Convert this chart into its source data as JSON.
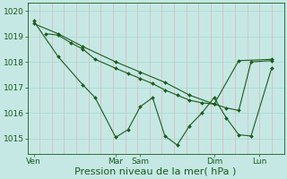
{
  "title": "",
  "xlabel": "Pression niveau de la mer( hPa )",
  "ylabel": "",
  "bg_color": "#c5e8e5",
  "plot_bg_color": "#c5e8e5",
  "line_color": "#1a5c1a",
  "grid_color_v": "#e8b0b0",
  "grid_color_h": "#a8d8d0",
  "ylim": [
    1014.4,
    1020.3
  ],
  "xtick_labels": [
    "Ven",
    "Mar",
    "Sam",
    "Dim",
    "Lun"
  ],
  "xtick_positions": [
    0,
    40,
    52,
    88,
    110
  ],
  "ytick_labels": [
    "1015",
    "1016",
    "1017",
    "1018",
    "1019",
    "1020"
  ],
  "ytick_values": [
    1015,
    1016,
    1017,
    1018,
    1019,
    1020
  ],
  "num_vgrid": 22,
  "num_hgrid": 6,
  "line1_x": [
    0,
    12,
    24,
    30,
    40,
    46,
    52,
    58,
    64,
    70,
    76,
    82,
    88,
    94,
    100,
    106,
    116
  ],
  "line1_y": [
    1019.6,
    1018.2,
    1017.1,
    1016.6,
    1015.05,
    1015.35,
    1016.25,
    1016.6,
    1015.1,
    1014.75,
    1015.5,
    1016.0,
    1016.6,
    1015.8,
    1015.15,
    1015.1,
    1017.75
  ],
  "line2_x": [
    0,
    12,
    24,
    40,
    52,
    64,
    76,
    88,
    100,
    116
  ],
  "line2_y": [
    1019.5,
    1019.1,
    1018.6,
    1018.0,
    1017.6,
    1017.2,
    1016.7,
    1016.35,
    1018.05,
    1018.1
  ],
  "line3_x": [
    6,
    12,
    18,
    24,
    30,
    40,
    46,
    52,
    58,
    64,
    70,
    76,
    82,
    88,
    94,
    100,
    106,
    116
  ],
  "line3_y": [
    1019.1,
    1019.05,
    1018.75,
    1018.5,
    1018.1,
    1017.75,
    1017.55,
    1017.35,
    1017.15,
    1016.9,
    1016.7,
    1016.5,
    1016.4,
    1016.35,
    1016.2,
    1016.1,
    1018.0,
    1018.05
  ],
  "xlim": [
    -3,
    122
  ],
  "xlabel_fontsize": 8,
  "tick_fontsize": 6.5
}
